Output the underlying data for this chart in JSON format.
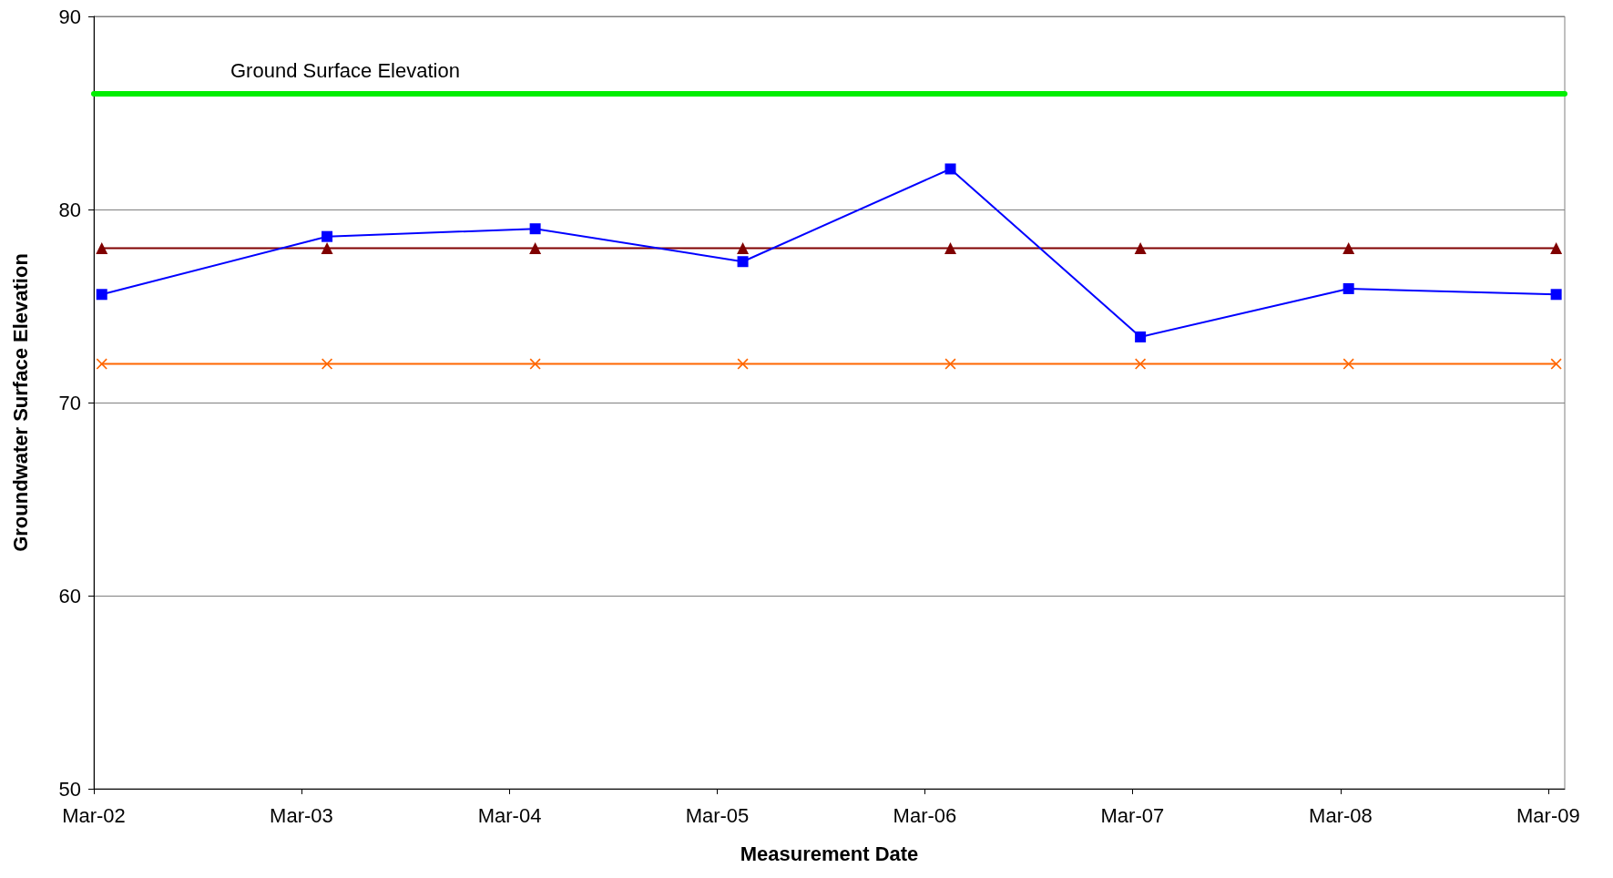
{
  "chart_data": {
    "type": "line",
    "xlabel": "Measurement Date",
    "ylabel": "Groundwater Surface Elevation",
    "x": [
      "2002-03-15",
      "2003-04-15",
      "2004-04-15",
      "2005-04-15",
      "2006-04-15",
      "2007-03-15",
      "2008-03-15",
      "2009-03-15"
    ],
    "xlim": [
      "2002-03-01",
      "2009-03-30"
    ],
    "xticks": [
      {
        "value": "2002-03-01",
        "label": "Mar-02"
      },
      {
        "value": "2003-03-01",
        "label": "Mar-03"
      },
      {
        "value": "2004-03-01",
        "label": "Mar-04"
      },
      {
        "value": "2005-03-01",
        "label": "Mar-05"
      },
      {
        "value": "2006-03-01",
        "label": "Mar-06"
      },
      {
        "value": "2007-03-01",
        "label": "Mar-07"
      },
      {
        "value": "2008-03-01",
        "label": "Mar-08"
      },
      {
        "value": "2009-03-01",
        "label": "Mar-09"
      }
    ],
    "ylim": [
      50,
      90
    ],
    "yticks": [
      50,
      60,
      70,
      80,
      90
    ],
    "grid": "y",
    "line_style": "solid",
    "series": [
      {
        "color": "#0000ff",
        "marker": "square",
        "values": [
          75.6,
          78.6,
          79.0,
          77.3,
          82.1,
          73.4,
          75.9,
          75.6
        ]
      },
      {
        "color": "#800000",
        "marker": "triangle",
        "values": [
          78,
          78,
          78,
          78,
          78,
          78,
          78,
          78
        ]
      },
      {
        "color": "#ff6600",
        "marker": "cross",
        "values": [
          72,
          72,
          72,
          72,
          72,
          72,
          72,
          72
        ]
      }
    ],
    "ref_lines": [
      {
        "axis": "y",
        "value": 86,
        "label": "Ground Surface Elevation",
        "color": "#00ee00",
        "line_style": "solid"
      }
    ]
  }
}
